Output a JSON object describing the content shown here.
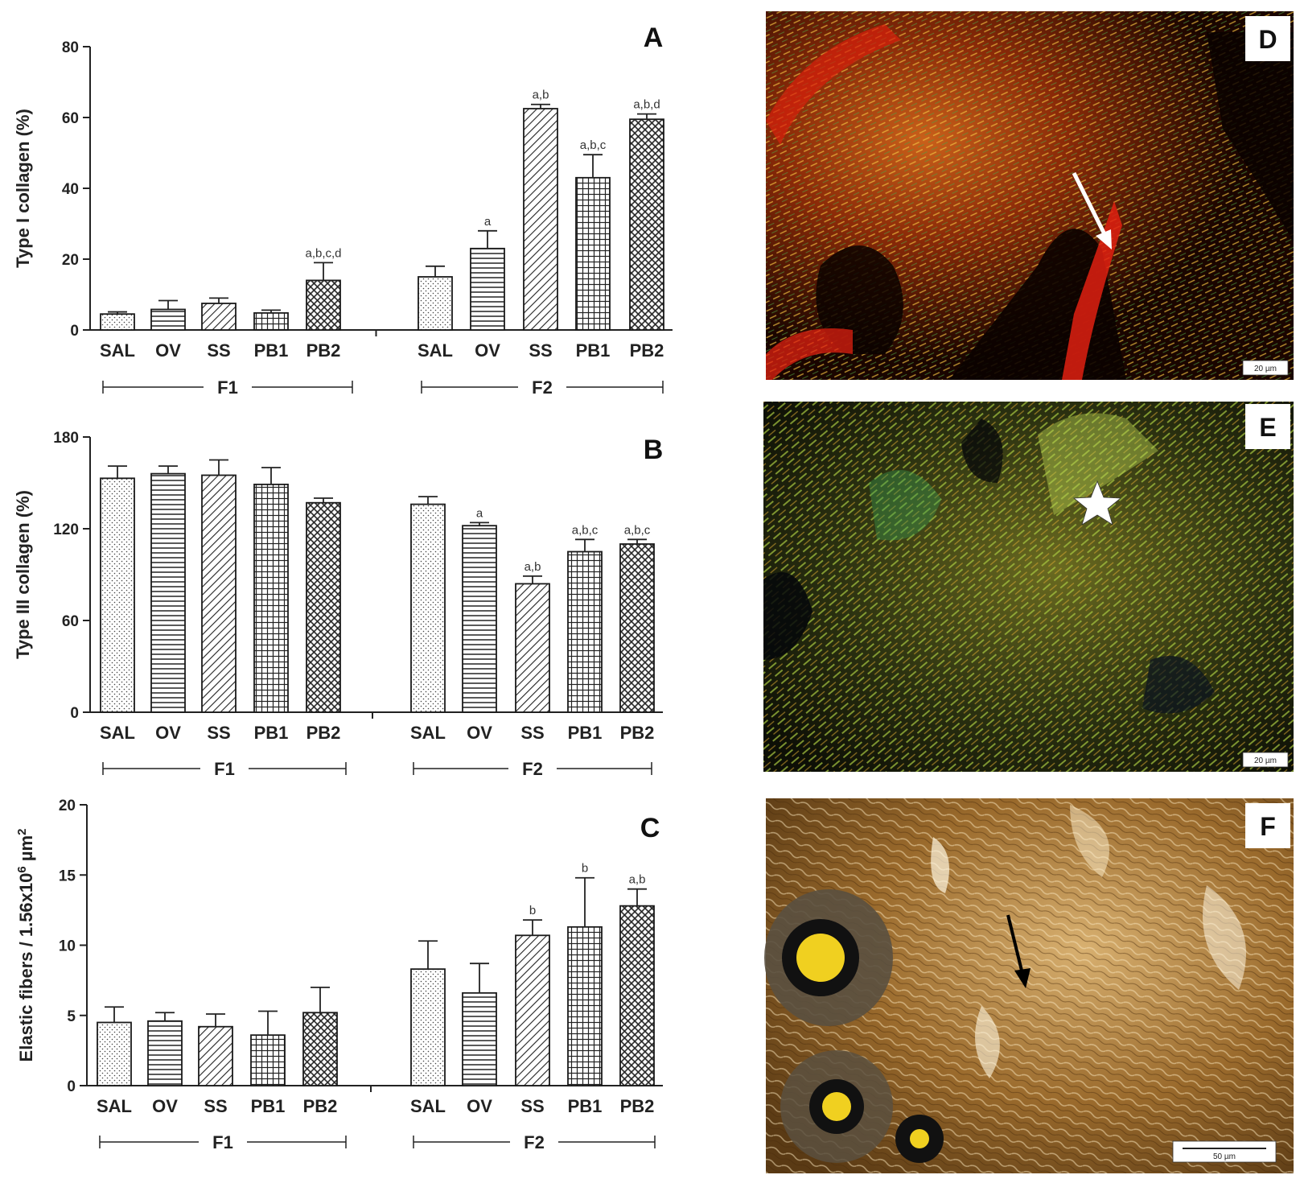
{
  "chart_data": [
    {
      "panel": "A",
      "type": "bar",
      "ylabel": "Type I collagen (%)",
      "ylim": [
        0,
        80
      ],
      "yticks": [
        0,
        20,
        40,
        60,
        80
      ],
      "groups": [
        {
          "name": "F1",
          "categories": [
            "SAL",
            "OV",
            "SS",
            "PB1",
            "PB2"
          ],
          "values": [
            4.5,
            5.8,
            7.5,
            4.8,
            14.0
          ],
          "errors": [
            0.6,
            2.5,
            1.5,
            0.8,
            5.0
          ],
          "significance": [
            "",
            "",
            "",
            "",
            "a,b,c,d"
          ]
        },
        {
          "name": "F2",
          "categories": [
            "SAL",
            "OV",
            "SS",
            "PB1",
            "PB2"
          ],
          "values": [
            15.0,
            23.0,
            62.5,
            43.0,
            59.5
          ],
          "errors": [
            3.0,
            5.0,
            1.2,
            6.5,
            1.5
          ],
          "significance": [
            "",
            "a",
            "a,b",
            "a,b,c",
            "a,b,d"
          ]
        }
      ]
    },
    {
      "panel": "B",
      "type": "bar",
      "ylabel": "Type III collagen (%)",
      "ylim": [
        0,
        180
      ],
      "yticks": [
        0,
        60,
        120,
        180
      ],
      "groups": [
        {
          "name": "F1",
          "categories": [
            "SAL",
            "OV",
            "SS",
            "PB1",
            "PB2"
          ],
          "values": [
            153,
            156,
            155,
            149,
            137
          ],
          "errors": [
            8,
            5,
            10,
            11,
            3
          ],
          "significance": [
            "",
            "",
            "",
            "",
            ""
          ]
        },
        {
          "name": "F2",
          "categories": [
            "SAL",
            "OV",
            "SS",
            "PB1",
            "PB2"
          ],
          "values": [
            136,
            122,
            84,
            105,
            110
          ],
          "errors": [
            5,
            2,
            5,
            8,
            3
          ],
          "significance": [
            "",
            "a",
            "a,b",
            "a,b,c",
            "a,b,c"
          ]
        }
      ]
    },
    {
      "panel": "C",
      "type": "bar",
      "ylabel": "Elastic fibers / 1.56x10",
      "ylabel_exponent": "6",
      "ylabel_unit": " µm",
      "ylabel_unit_exponent": "2",
      "ylim": [
        0,
        20
      ],
      "yticks": [
        0,
        5,
        10,
        15,
        20
      ],
      "groups": [
        {
          "name": "F1",
          "categories": [
            "SAL",
            "OV",
            "SS",
            "PB1",
            "PB2"
          ],
          "values": [
            4.5,
            4.6,
            4.2,
            3.6,
            5.2
          ],
          "errors": [
            1.1,
            0.6,
            0.9,
            1.7,
            1.8
          ],
          "significance": [
            "",
            "",
            "",
            "",
            ""
          ]
        },
        {
          "name": "F2",
          "categories": [
            "SAL",
            "OV",
            "SS",
            "PB1",
            "PB2"
          ],
          "values": [
            8.3,
            6.6,
            10.7,
            11.3,
            12.8
          ],
          "errors": [
            2.0,
            2.1,
            1.1,
            3.5,
            1.2
          ],
          "significance": [
            "",
            "",
            "b",
            "b",
            "a,b"
          ]
        }
      ]
    }
  ],
  "photos": [
    {
      "panel": "D",
      "scale_bar": "20 µm"
    },
    {
      "panel": "E",
      "scale_bar": "20 µm"
    },
    {
      "panel": "F",
      "scale_bar": "50 µm"
    }
  ],
  "patterns": [
    "dots",
    "hlines",
    "diag",
    "grid",
    "crosshatch"
  ],
  "colors": {
    "bar_stroke": "#1a1a1a",
    "axis": "#222222",
    "photo_d_base": "#1a0500",
    "photo_e_base": "#15140a",
    "photo_f_base": "#6b4a20"
  }
}
